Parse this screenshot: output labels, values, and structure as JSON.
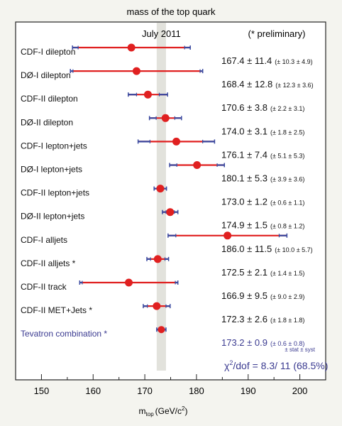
{
  "chart_data": {
    "type": "scatter",
    "title": "mass of the top quark",
    "xlabel_main": "m",
    "xlabel_sub": "top",
    "xlabel_unit": "(GeV/c",
    "xlabel_sup": "2",
    "xlabel_close": ")",
    "xlim": [
      145,
      205
    ],
    "xticks": [
      "150",
      "160",
      "170",
      "180",
      "190",
      "200"
    ],
    "band_label": "July 2011",
    "band_range": [
      172.3,
      174.1
    ],
    "prelim_note": "(* preliminary)",
    "stat_syst_note": "± stat ± syst",
    "chi2_text": "/dof = 8.3/ 11 (68.5%)",
    "colors": {
      "point": "#e02020",
      "stat_bar": "#3a4aa0",
      "combination": "#3a3a90",
      "band": "#e2e2dc"
    },
    "measurements": [
      {
        "label": "CDF-I dilepton",
        "value": 167.4,
        "total": 11.4,
        "stat": 10.3,
        "syst": 4.9,
        "main_text": "167.4 ± 11.4",
        "detail_text": "(± 10.3 ± 4.9)"
      },
      {
        "label": "DØ-I dilepton",
        "value": 168.4,
        "total": 12.8,
        "stat": 12.3,
        "syst": 3.6,
        "main_text": "168.4 ± 12.8",
        "detail_text": "(± 12.3 ± 3.6)"
      },
      {
        "label": "CDF-II dilepton",
        "value": 170.6,
        "total": 3.8,
        "stat": 2.2,
        "syst": 3.1,
        "main_text": "170.6 ± 3.8",
        "detail_text": "(± 2.2 ± 3.1)"
      },
      {
        "label": "DØ-II dilepton",
        "value": 174.0,
        "total": 3.1,
        "stat": 1.8,
        "syst": 2.5,
        "main_text": "174.0 ± 3.1",
        "detail_text": "(± 1.8 ± 2.5)"
      },
      {
        "label": "CDF-I lepton+jets",
        "value": 176.1,
        "total": 7.4,
        "stat": 5.1,
        "syst": 5.3,
        "main_text": "176.1 ± 7.4",
        "detail_text": "(± 5.1 ± 5.3)"
      },
      {
        "label": "DØ-I lepton+jets",
        "value": 180.1,
        "total": 5.3,
        "stat": 3.9,
        "syst": 3.6,
        "main_text": "180.1 ± 5.3",
        "detail_text": "(± 3.9 ± 3.6)"
      },
      {
        "label": "CDF-II lepton+jets",
        "value": 173.0,
        "total": 1.2,
        "stat": 0.6,
        "syst": 1.1,
        "main_text": "173.0 ± 1.2",
        "detail_text": "(± 0.6 ± 1.1)"
      },
      {
        "label": "DØ-II lepton+jets",
        "value": 174.9,
        "total": 1.5,
        "stat": 0.8,
        "syst": 1.2,
        "main_text": "174.9 ± 1.5",
        "detail_text": "(± 0.8 ± 1.2)"
      },
      {
        "label": "CDF-I alljets",
        "value": 186.0,
        "total": 11.5,
        "stat": 10.0,
        "syst": 5.7,
        "main_text": "186.0 ± 11.5",
        "detail_text": "(± 10.0 ± 5.7)"
      },
      {
        "label": "CDF-II alljets *",
        "value": 172.5,
        "total": 2.1,
        "stat": 1.4,
        "syst": 1.5,
        "main_text": "172.5 ± 2.1",
        "detail_text": "(± 1.4 ± 1.5)"
      },
      {
        "label": "CDF-II track",
        "value": 166.9,
        "total": 9.5,
        "stat": 9.0,
        "syst": 2.9,
        "main_text": "166.9 ± 9.5",
        "detail_text": "(± 9.0 ± 2.9)"
      },
      {
        "label": "CDF-II MET+Jets *",
        "value": 172.3,
        "total": 2.6,
        "stat": 1.8,
        "syst": 1.8,
        "main_text": "172.3 ± 2.6",
        "detail_text": "(± 1.8 ± 1.8)"
      },
      {
        "label": "Tevatron combination *",
        "value": 173.2,
        "total": 0.9,
        "stat": 0.6,
        "syst": 0.8,
        "main_text": "173.2 ± 0.9",
        "detail_text": "(± 0.6 ± 0.8)",
        "combination": true
      }
    ]
  }
}
